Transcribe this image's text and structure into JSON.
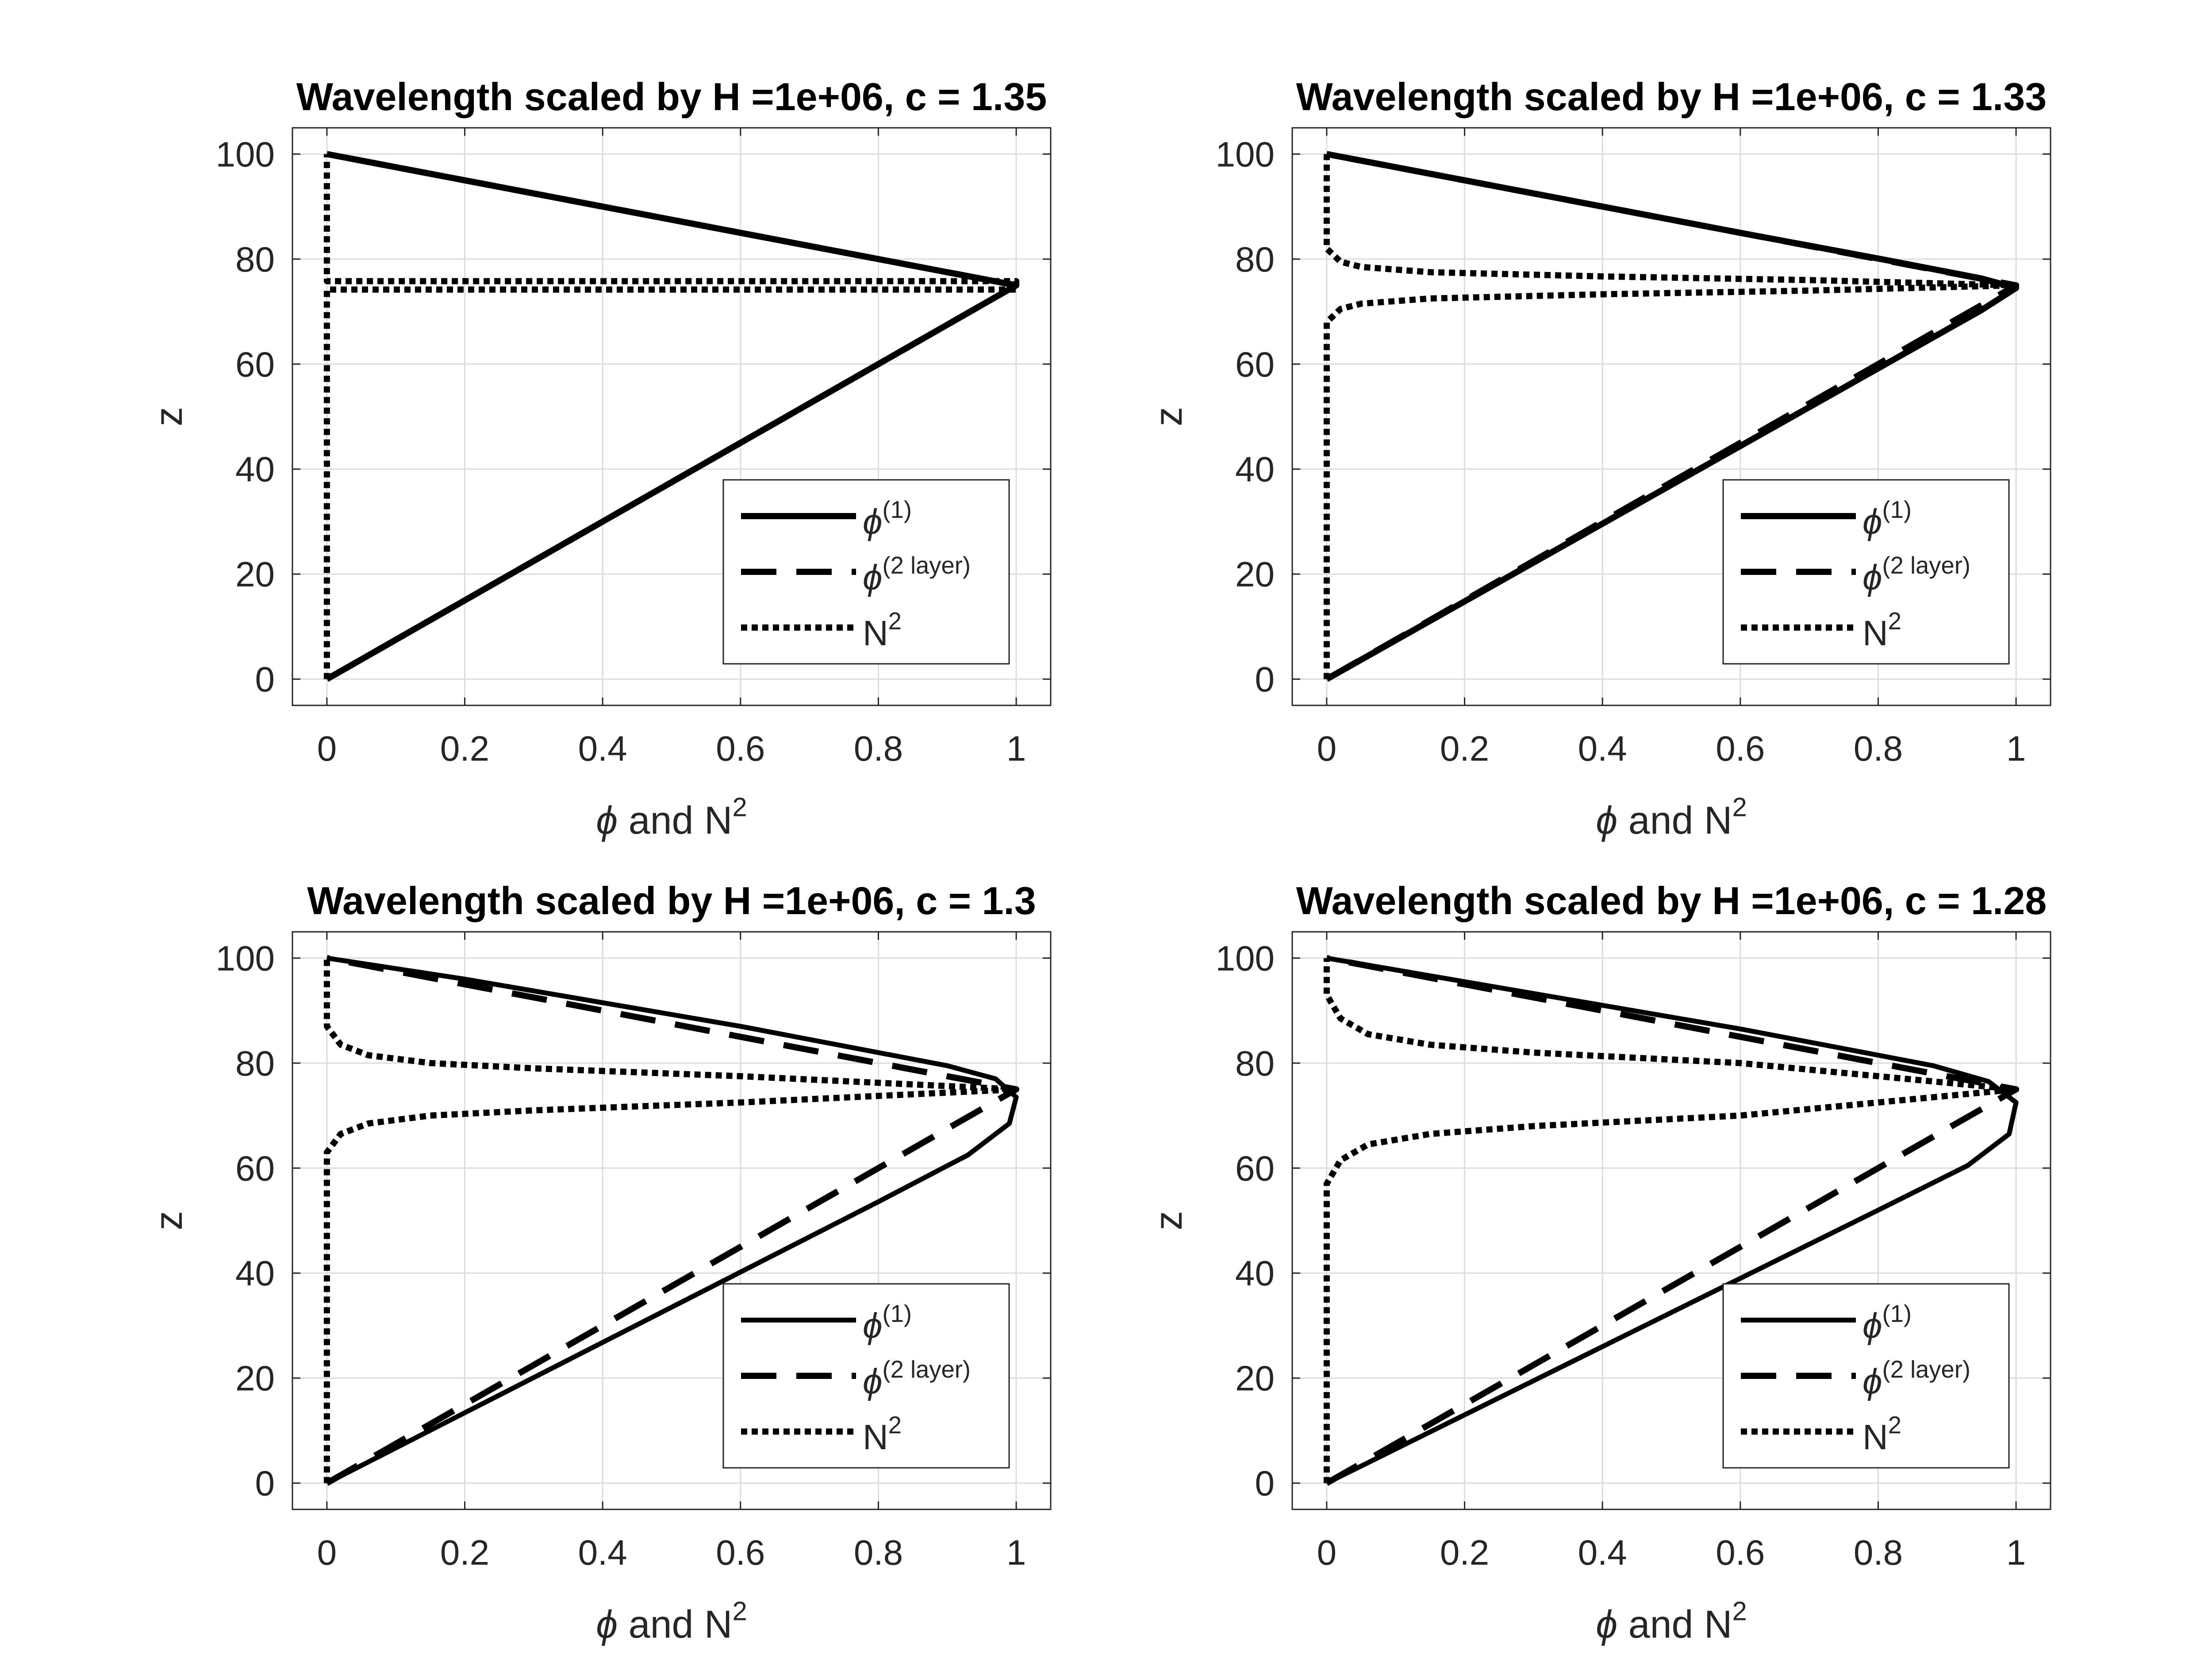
{
  "chart_data": [
    {
      "type": "line",
      "title": "Wavelength scaled by H =1e+06, c = 1.35",
      "xlabel": "ϕ and N²",
      "ylabel": "z",
      "xlim": [
        -0.05,
        1.05
      ],
      "ylim": [
        -5,
        105
      ],
      "xticks": [
        "0",
        "0.2",
        "0.4",
        "0.6",
        "0.8",
        "1"
      ],
      "yticks": [
        "0",
        "20",
        "40",
        "60",
        "80",
        "100"
      ],
      "grid": true,
      "legend_position": "bottom-right",
      "series": [
        {
          "name": "ϕ(1)",
          "style": "solid",
          "x": [
            0,
            1,
            0
          ],
          "y": [
            0,
            75,
            100
          ]
        },
        {
          "name": "ϕ(2 layer)",
          "style": "dashed",
          "x": [
            0,
            1,
            0
          ],
          "y": [
            0,
            75,
            100
          ]
        },
        {
          "name": "N²",
          "style": "dotted",
          "x": [
            0,
            0,
            1,
            1,
            0,
            0
          ],
          "y": [
            0,
            74.2,
            74.2,
            75.8,
            75.8,
            100
          ]
        }
      ]
    },
    {
      "type": "line",
      "title": "Wavelength scaled by H =1e+06, c = 1.33",
      "xlabel": "ϕ and N²",
      "ylabel": "z",
      "xlim": [
        -0.05,
        1.05
      ],
      "ylim": [
        -5,
        105
      ],
      "xticks": [
        "0",
        "0.2",
        "0.4",
        "0.6",
        "0.8",
        "1"
      ],
      "yticks": [
        "0",
        "20",
        "40",
        "60",
        "80",
        "100"
      ],
      "grid": true,
      "legend_position": "bottom-right",
      "series": [
        {
          "name": "ϕ(1)",
          "style": "solid",
          "x": [
            0,
            0.2,
            0.4,
            0.6,
            0.8,
            0.95,
            1.0,
            0.95,
            0.8,
            0.6,
            0.4,
            0.2,
            0
          ],
          "y": [
            0,
            14.8,
            29.6,
            44.4,
            59.2,
            70.3,
            74.5,
            76.3,
            80.1,
            85.0,
            90.0,
            95.0,
            100
          ]
        },
        {
          "name": "ϕ(2 layer)",
          "style": "dashed",
          "x": [
            0,
            1,
            0
          ],
          "y": [
            0,
            75,
            100
          ]
        },
        {
          "name": "N²",
          "style": "dotted",
          "x": [
            0,
            0,
            0.02,
            0.05,
            0.15,
            0.4,
            0.7,
            1.0,
            0.7,
            0.4,
            0.15,
            0.05,
            0.02,
            0,
            0
          ],
          "y": [
            0,
            68,
            70.5,
            71.5,
            72.5,
            73.3,
            74.0,
            75.0,
            76.0,
            76.7,
            77.5,
            78.5,
            79.5,
            82,
            100
          ]
        }
      ]
    },
    {
      "type": "line",
      "title": "Wavelength scaled by H =1e+06, c = 1.3",
      "xlabel": "ϕ and N²",
      "ylabel": "z",
      "xlim": [
        -0.05,
        1.05
      ],
      "ylim": [
        -5,
        105
      ],
      "xticks": [
        "0",
        "0.2",
        "0.4",
        "0.6",
        "0.8",
        "1"
      ],
      "yticks": [
        "0",
        "20",
        "40",
        "60",
        "80",
        "100"
      ],
      "grid": true,
      "legend_position": "bottom-right",
      "series": [
        {
          "name": "ϕ(1)",
          "style": "solid",
          "x": [
            0,
            0.2,
            0.4,
            0.6,
            0.8,
            0.93,
            0.99,
            1.0,
            0.97,
            0.9,
            0.8,
            0.6,
            0.4,
            0.2,
            0
          ],
          "y": [
            0,
            13.4,
            26.8,
            40.2,
            53.6,
            62.5,
            68.5,
            73.5,
            77.0,
            79.5,
            82.0,
            87.0,
            91.5,
            96.0,
            100
          ]
        },
        {
          "name": "ϕ(2 layer)",
          "style": "dashed",
          "x": [
            0,
            1,
            0
          ],
          "y": [
            0,
            75,
            100
          ]
        },
        {
          "name": "N²",
          "style": "dotted",
          "x": [
            0,
            0,
            0.02,
            0.06,
            0.15,
            0.3,
            0.6,
            1.0,
            0.6,
            0.3,
            0.15,
            0.06,
            0.02,
            0,
            0
          ],
          "y": [
            0,
            63,
            66.5,
            68.5,
            70.0,
            71.0,
            72.5,
            75.0,
            77.5,
            79.0,
            80.0,
            81.5,
            83.5,
            87,
            100
          ]
        }
      ]
    },
    {
      "type": "line",
      "title": "Wavelength scaled by H =1e+06, c = 1.28",
      "xlabel": "ϕ and N²",
      "ylabel": "z",
      "xlim": [
        -0.05,
        1.05
      ],
      "ylim": [
        -5,
        105
      ],
      "xticks": [
        "0",
        "0.2",
        "0.4",
        "0.6",
        "0.8",
        "1"
      ],
      "yticks": [
        "0",
        "20",
        "40",
        "60",
        "80",
        "100"
      ],
      "grid": true,
      "legend_position": "bottom-right",
      "series": [
        {
          "name": "ϕ(1)",
          "style": "solid",
          "x": [
            0,
            0.2,
            0.4,
            0.6,
            0.8,
            0.93,
            0.99,
            1.0,
            0.96,
            0.88,
            0.8,
            0.6,
            0.4,
            0.2,
            0
          ],
          "y": [
            0,
            13.0,
            26.0,
            39.0,
            52.0,
            60.5,
            66.5,
            72.5,
            76.5,
            79.5,
            81.5,
            86.5,
            91.0,
            95.5,
            100
          ]
        },
        {
          "name": "ϕ(2 layer)",
          "style": "dashed",
          "x": [
            0,
            1,
            0
          ],
          "y": [
            0,
            75,
            100
          ]
        },
        {
          "name": "N²",
          "style": "dotted",
          "x": [
            0,
            0,
            0.02,
            0.06,
            0.15,
            0.3,
            0.6,
            1.0,
            0.6,
            0.3,
            0.15,
            0.06,
            0.02,
            0,
            0
          ],
          "y": [
            0,
            57,
            61.5,
            64.5,
            66.5,
            68.0,
            70.0,
            75.0,
            80.0,
            82.0,
            83.5,
            85.5,
            88.5,
            93,
            100
          ]
        }
      ]
    }
  ]
}
